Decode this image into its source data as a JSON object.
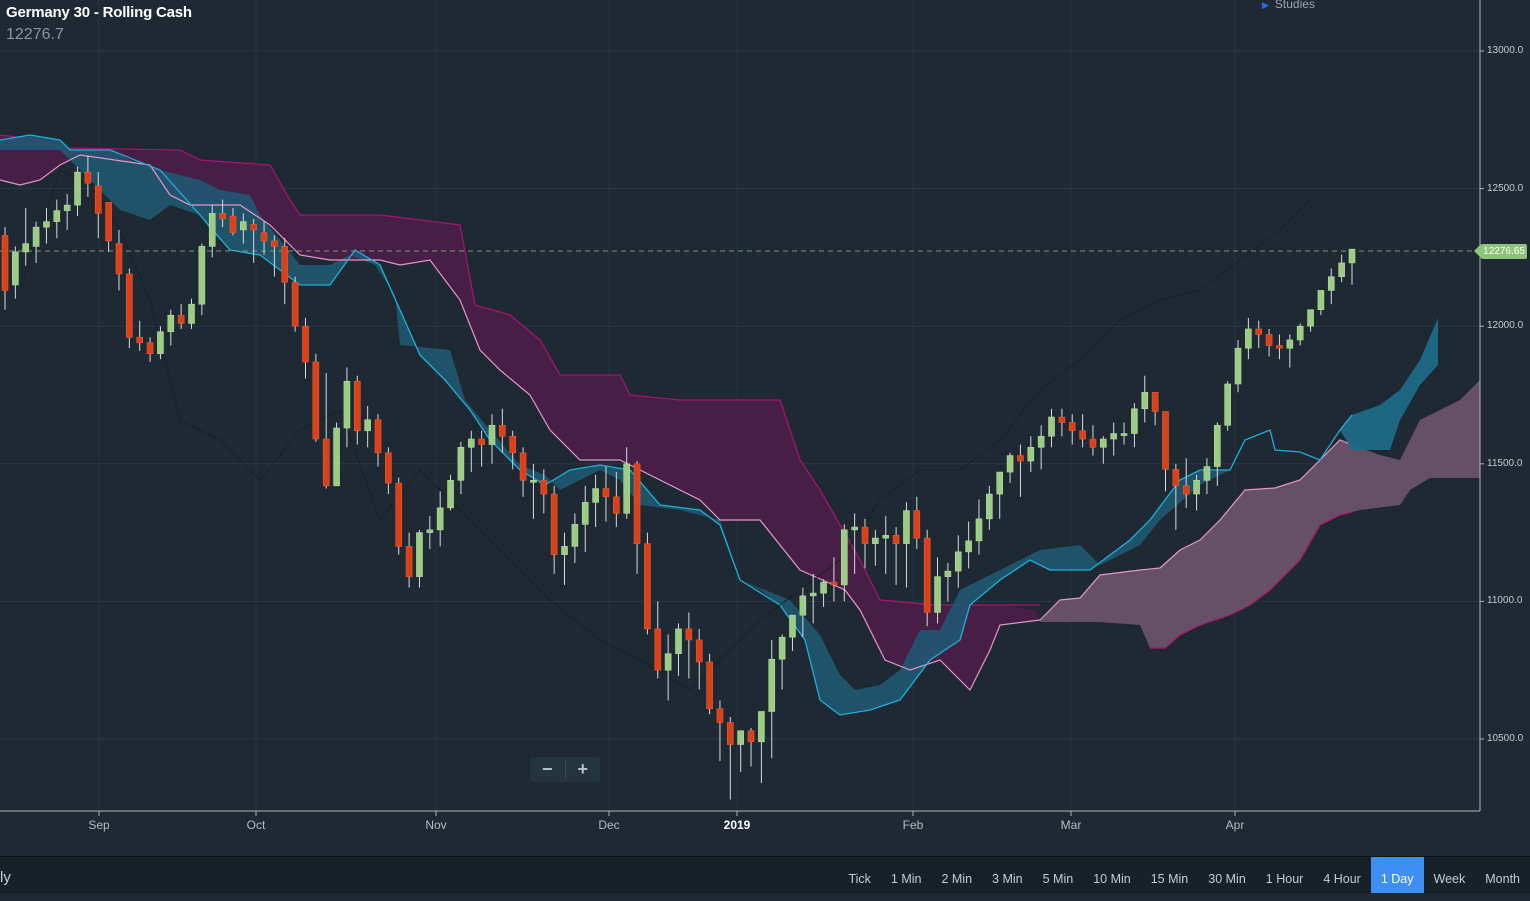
{
  "header": {
    "title": "Germany 30 - Rolling Cash",
    "last_price": "12276.7",
    "studies_label": "Studies"
  },
  "y_axis": {
    "ticks": [
      {
        "label": "13000.0",
        "value": 13000
      },
      {
        "label": "12500.0",
        "value": 12500
      },
      {
        "label": "12000.0",
        "value": 12000
      },
      {
        "label": "11500.0",
        "value": 11500
      },
      {
        "label": "11000.0",
        "value": 11000
      },
      {
        "label": "10500.0",
        "value": 10500
      }
    ],
    "last_price_label": "12276.65"
  },
  "x_axis": {
    "ticks": [
      {
        "label": "Sep",
        "x": 99
      },
      {
        "label": "Oct",
        "x": 256
      },
      {
        "label": "Nov",
        "x": 436
      },
      {
        "label": "Dec",
        "x": 609
      },
      {
        "label": "2019",
        "x": 737,
        "year": true
      },
      {
        "label": "Feb",
        "x": 913
      },
      {
        "label": "Mar",
        "x": 1071
      },
      {
        "label": "Apr",
        "x": 1235
      }
    ]
  },
  "zoom_controls": {
    "zoom_out": "−",
    "zoom_in": "+"
  },
  "bottom_bar": {
    "period_label": "ly",
    "timeframes": [
      {
        "label": "Tick",
        "active": false
      },
      {
        "label": "1 Min",
        "active": false
      },
      {
        "label": "2 Min",
        "active": false
      },
      {
        "label": "3 Min",
        "active": false
      },
      {
        "label": "5 Min",
        "active": false
      },
      {
        "label": "10 Min",
        "active": false
      },
      {
        "label": "15 Min",
        "active": false
      },
      {
        "label": "30 Min",
        "active": false
      },
      {
        "label": "1 Hour",
        "active": false
      },
      {
        "label": "4 Hour",
        "active": false
      },
      {
        "label": "1 Day",
        "active": true
      },
      {
        "label": "Week",
        "active": false
      },
      {
        "label": "Month",
        "active": false
      }
    ]
  },
  "colors": {
    "background": "#1e2934",
    "bullish": "#9ccc84",
    "bearish": "#d9411b",
    "wick": "#d8dadc",
    "kumo_bull": "#2d7e9e",
    "kumo_bear": "#6b1a56",
    "kumo_bull_future": "#6e5568",
    "tenkan": "#1fb0dc",
    "kijun": "#e796c8",
    "last_price": "#8cc57a",
    "active_tab": "#3d8ff1"
  },
  "chart_data": {
    "type": "candlestick",
    "title": "Germany 30 - Rolling Cash",
    "study": "Ichimoku Cloud",
    "interval": "1 Day",
    "xlabel": "",
    "ylabel": "",
    "ylim": [
      10250,
      13150
    ],
    "x_range": [
      "Aug 2018",
      "Apr 2019"
    ],
    "last_price": 12276.65,
    "grid": true,
    "candles_ohlc": [
      [
        12330,
        12360,
        12060,
        12130
      ],
      [
        12150,
        12290,
        12100,
        12270
      ],
      [
        12270,
        12430,
        12220,
        12300
      ],
      [
        12290,
        12380,
        12230,
        12360
      ],
      [
        12360,
        12430,
        12300,
        12380
      ],
      [
        12380,
        12460,
        12320,
        12420
      ],
      [
        12420,
        12480,
        12350,
        12440
      ],
      [
        12440,
        12580,
        12400,
        12560
      ],
      [
        12560,
        12620,
        12470,
        12520
      ],
      [
        12510,
        12560,
        12320,
        12410
      ],
      [
        12450,
        12420,
        12270,
        12310
      ],
      [
        12300,
        12350,
        12130,
        12190
      ],
      [
        12190,
        12210,
        11920,
        11960
      ],
      [
        11960,
        12020,
        11910,
        11940
      ],
      [
        11940,
        11960,
        11870,
        11900
      ],
      [
        11900,
        12000,
        11880,
        11980
      ],
      [
        11980,
        12060,
        11930,
        12040
      ],
      [
        12040,
        12080,
        11990,
        12010
      ],
      [
        12010,
        12100,
        11990,
        12080
      ],
      [
        12080,
        12300,
        12040,
        12290
      ],
      [
        12290,
        12440,
        12250,
        12410
      ],
      [
        12410,
        12460,
        12360,
        12390
      ],
      [
        12400,
        12430,
        12330,
        12340
      ],
      [
        12350,
        12410,
        12300,
        12380
      ],
      [
        12370,
        12390,
        12230,
        12350
      ],
      [
        12340,
        12380,
        12260,
        12310
      ],
      [
        12310,
        12330,
        12180,
        12290
      ],
      [
        12290,
        12320,
        12080,
        12160
      ],
      [
        12160,
        12180,
        11980,
        12000
      ],
      [
        12000,
        12030,
        11810,
        11870
      ],
      [
        11870,
        11900,
        11580,
        11590
      ],
      [
        11590,
        11830,
        11410,
        11420
      ],
      [
        11420,
        11650,
        11450,
        11630
      ],
      [
        11630,
        11850,
        11560,
        11800
      ],
      [
        11800,
        11820,
        11570,
        11620
      ],
      [
        11620,
        11710,
        11560,
        11660
      ],
      [
        11660,
        11680,
        11490,
        11540
      ],
      [
        11540,
        11560,
        11390,
        11430
      ],
      [
        11430,
        11450,
        11170,
        11200
      ],
      [
        11200,
        11250,
        11050,
        11090
      ],
      [
        11090,
        11260,
        11050,
        11250
      ],
      [
        11250,
        11310,
        11190,
        11260
      ],
      [
        11260,
        11400,
        11200,
        11340
      ],
      [
        11340,
        11460,
        11330,
        11440
      ],
      [
        11440,
        11580,
        11390,
        11560
      ],
      [
        11560,
        11620,
        11470,
        11590
      ],
      [
        11590,
        11620,
        11490,
        11570
      ],
      [
        11570,
        11680,
        11500,
        11640
      ],
      [
        11640,
        11700,
        11540,
        11600
      ],
      [
        11600,
        11620,
        11480,
        11540
      ],
      [
        11540,
        11560,
        11380,
        11440
      ],
      [
        11440,
        11500,
        11300,
        11440
      ],
      [
        11440,
        11480,
        11320,
        11390
      ],
      [
        11390,
        11420,
        11100,
        11170
      ],
      [
        11170,
        11250,
        11060,
        11200
      ],
      [
        11200,
        11320,
        11140,
        11280
      ],
      [
        11280,
        11420,
        11180,
        11360
      ],
      [
        11360,
        11460,
        11270,
        11410
      ],
      [
        11410,
        11490,
        11290,
        11380
      ],
      [
        11380,
        11470,
        11270,
        11320
      ],
      [
        11320,
        11560,
        11300,
        11500
      ],
      [
        11500,
        11510,
        11100,
        11210
      ],
      [
        11210,
        11250,
        10880,
        10900
      ],
      [
        10900,
        11000,
        10720,
        10750
      ],
      [
        10750,
        10880,
        10640,
        10810
      ],
      [
        10810,
        10920,
        10730,
        10900
      ],
      [
        10900,
        10960,
        10720,
        10860
      ],
      [
        10860,
        10900,
        10680,
        10780
      ],
      [
        10780,
        10810,
        10590,
        10610
      ],
      [
        10610,
        10640,
        10420,
        10560
      ],
      [
        10560,
        10580,
        10280,
        10480
      ],
      [
        10480,
        10520,
        10380,
        10530
      ],
      [
        10530,
        10540,
        10400,
        10490
      ],
      [
        10490,
        10550,
        10340,
        10600
      ],
      [
        10600,
        10860,
        10430,
        10790
      ],
      [
        10790,
        10880,
        10680,
        10870
      ],
      [
        10870,
        10940,
        10820,
        10950
      ],
      [
        10950,
        11050,
        10870,
        11020
      ],
      [
        11020,
        11100,
        10920,
        11030
      ],
      [
        11030,
        11080,
        10980,
        11070
      ],
      [
        11070,
        11160,
        11000,
        11060
      ],
      [
        11060,
        11280,
        11000,
        11260
      ],
      [
        11260,
        11320,
        11100,
        11270
      ],
      [
        11270,
        11300,
        11120,
        11210
      ],
      [
        11210,
        11260,
        11130,
        11230
      ],
      [
        11230,
        11310,
        11100,
        11240
      ],
      [
        11240,
        11270,
        11060,
        11210
      ],
      [
        11210,
        11360,
        11050,
        11330
      ],
      [
        11330,
        11380,
        11190,
        11230
      ],
      [
        11230,
        11260,
        10910,
        10960
      ],
      [
        10960,
        11160,
        10920,
        11090
      ],
      [
        11090,
        11140,
        11000,
        11110
      ],
      [
        11110,
        11240,
        11050,
        11180
      ],
      [
        11180,
        11290,
        11120,
        11220
      ],
      [
        11220,
        11370,
        11170,
        11300
      ],
      [
        11300,
        11420,
        11260,
        11390
      ],
      [
        11390,
        11470,
        11300,
        11470
      ],
      [
        11470,
        11540,
        11430,
        11530
      ],
      [
        11530,
        11570,
        11380,
        11510
      ],
      [
        11510,
        11600,
        11470,
        11560
      ],
      [
        11560,
        11640,
        11480,
        11600
      ],
      [
        11600,
        11700,
        11560,
        11670
      ],
      [
        11670,
        11700,
        11600,
        11650
      ],
      [
        11650,
        11680,
        11570,
        11620
      ],
      [
        11620,
        11680,
        11560,
        11590
      ],
      [
        11590,
        11640,
        11530,
        11560
      ],
      [
        11560,
        11600,
        11500,
        11590
      ],
      [
        11590,
        11650,
        11530,
        11610
      ],
      [
        11610,
        11650,
        11570,
        11610
      ],
      [
        11610,
        11720,
        11560,
        11700
      ],
      [
        11700,
        11820,
        11650,
        11760
      ],
      [
        11760,
        11720,
        11640,
        11690
      ],
      [
        11690,
        11670,
        11400,
        11480
      ],
      [
        11480,
        11500,
        11260,
        11420
      ],
      [
        11420,
        11520,
        11340,
        11390
      ],
      [
        11390,
        11460,
        11330,
        11440
      ],
      [
        11440,
        11520,
        11390,
        11490
      ],
      [
        11490,
        11650,
        11420,
        11640
      ],
      [
        11640,
        11800,
        11620,
        11790
      ],
      [
        11790,
        11950,
        11760,
        11920
      ],
      [
        11920,
        12030,
        11880,
        11990
      ],
      [
        11990,
        12020,
        11920,
        11970
      ],
      [
        11970,
        11990,
        11890,
        11930
      ],
      [
        11930,
        11970,
        11880,
        11920
      ],
      [
        11920,
        11970,
        11850,
        11950
      ],
      [
        11950,
        12010,
        11930,
        12000
      ],
      [
        12000,
        12060,
        11980,
        12060
      ],
      [
        12060,
        12130,
        12040,
        12130
      ],
      [
        12130,
        12210,
        12080,
        12180
      ],
      [
        12180,
        12260,
        12160,
        12230
      ],
      [
        12230,
        12280,
        12150,
        12280
      ]
    ],
    "ichimoku": {
      "lines": [
        "Tenkan-sen",
        "Kijun-sen",
        "Senkou Span A",
        "Senkou Span B",
        "Chikou Span"
      ],
      "cloud_colors": [
        "bullish (teal)",
        "bearish (magenta)"
      ]
    }
  }
}
